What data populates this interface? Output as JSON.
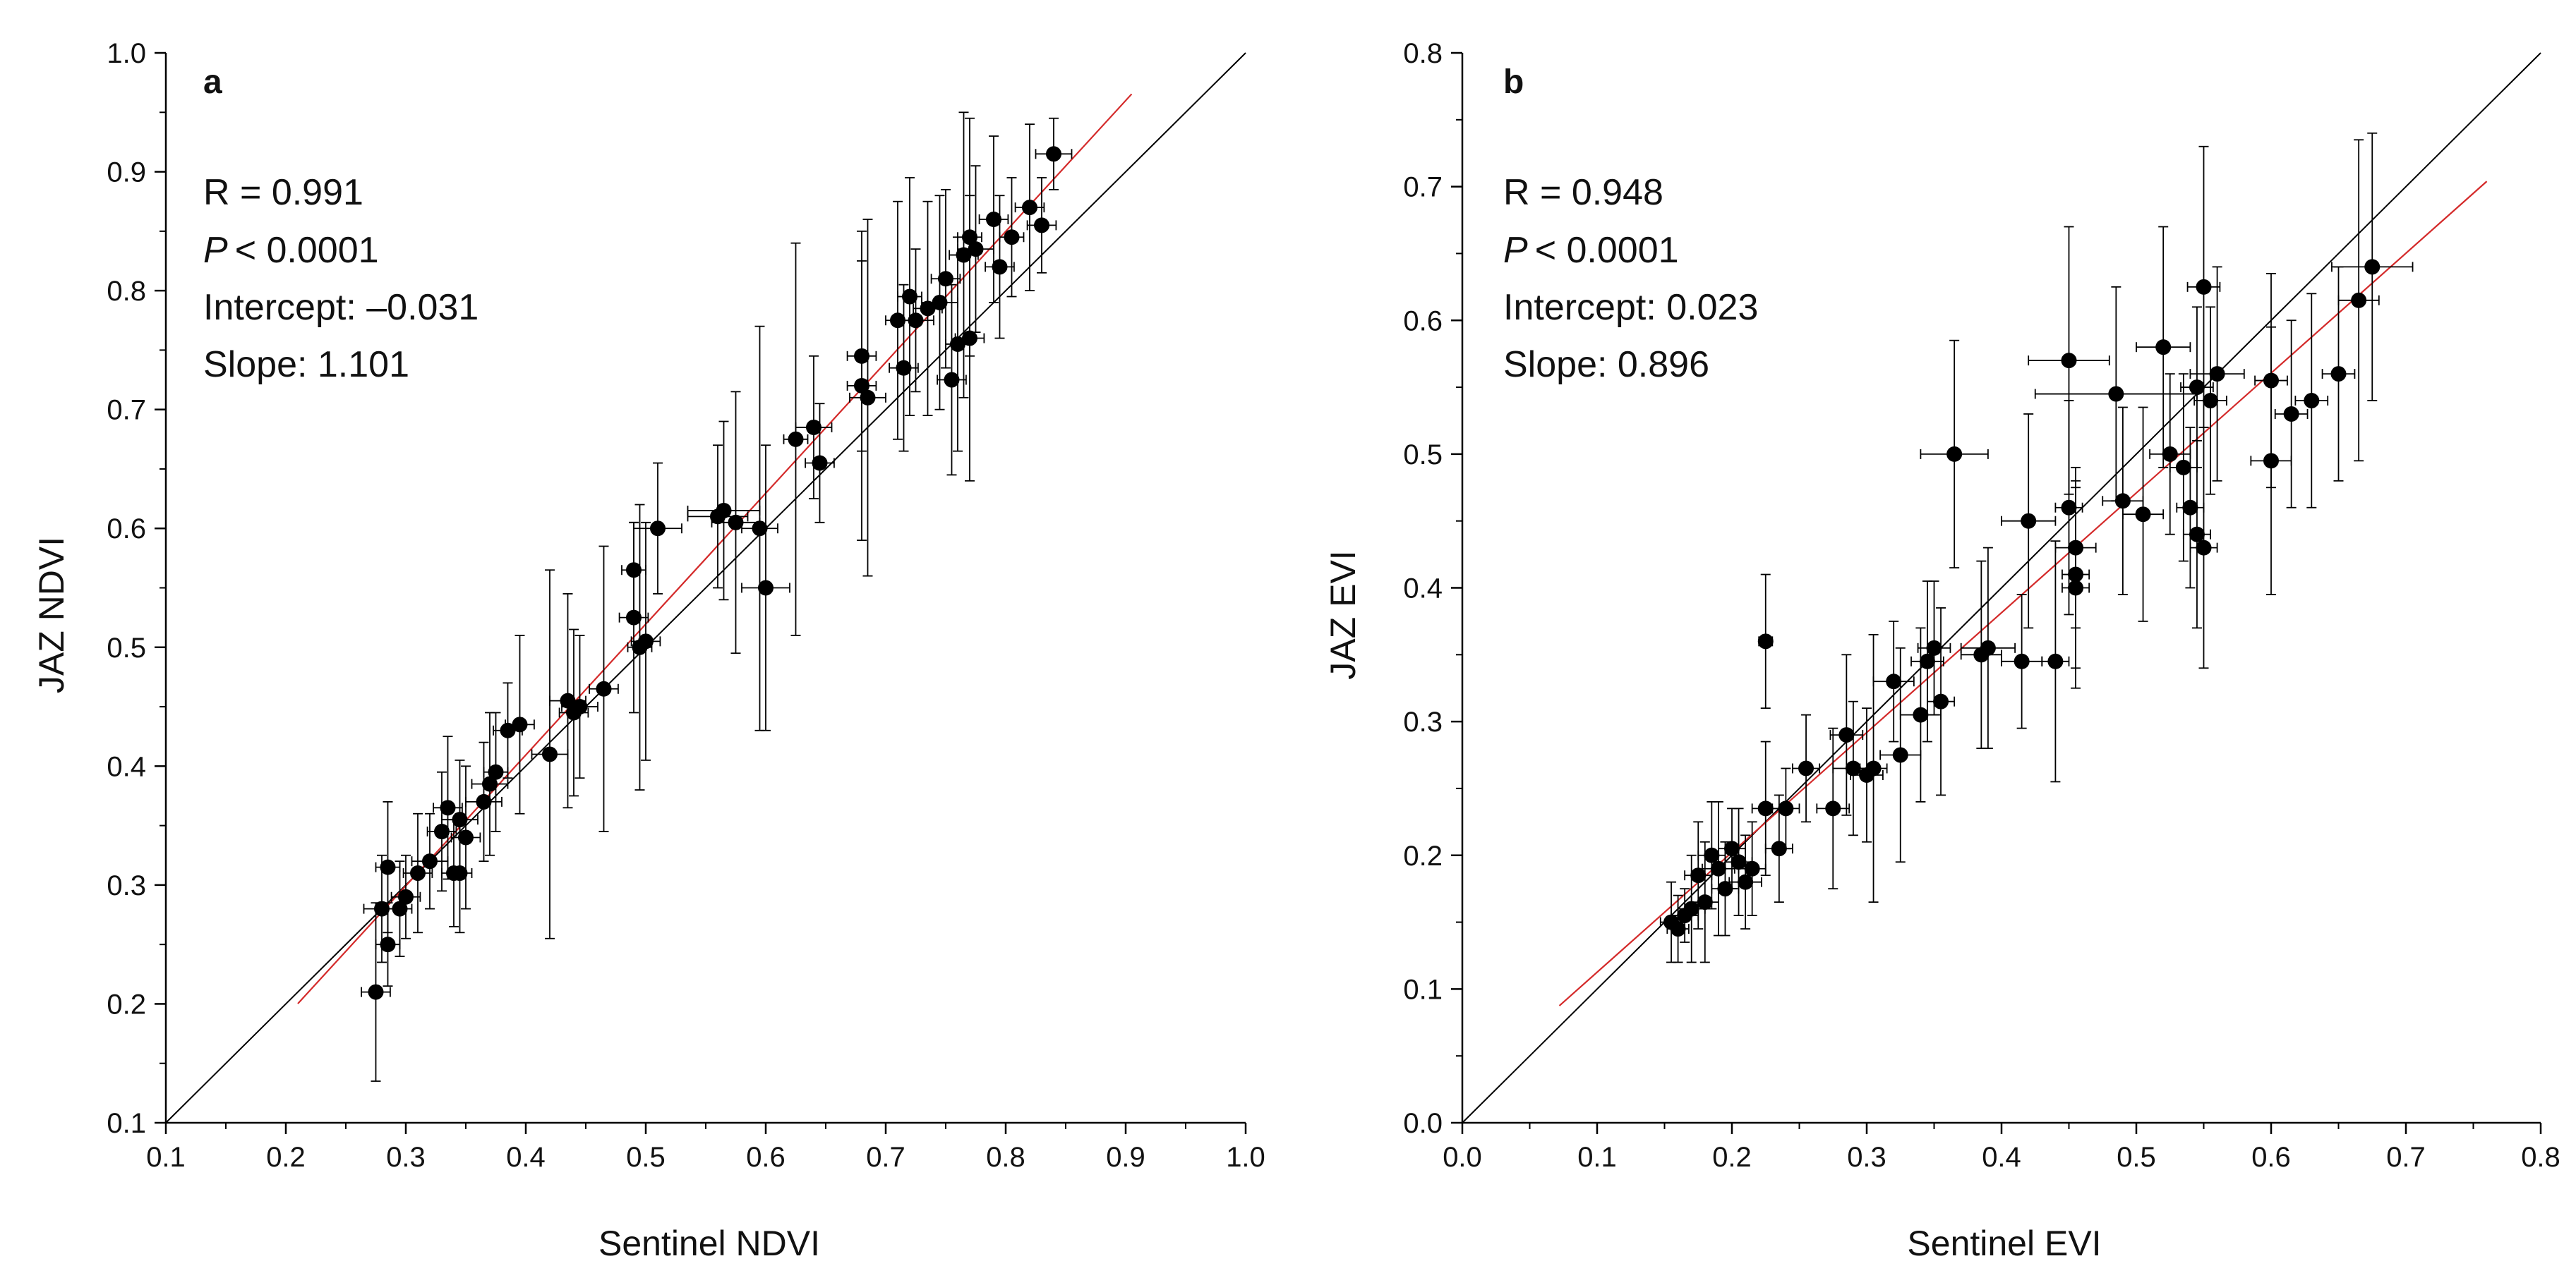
{
  "colors": {
    "axis": "#000000",
    "points": "#000000",
    "fit_line": "#d42a2a",
    "one_to_one": "#000000"
  },
  "chart_data": [
    {
      "type": "scatter",
      "panel": "a",
      "xlabel": "Sentinel NDVI",
      "ylabel": "JAZ NDVI",
      "xlim": [
        0.1,
        1.0
      ],
      "ylim": [
        0.1,
        1.0
      ],
      "xticks": [
        "0.1",
        "0.2",
        "0.3",
        "0.4",
        "0.5",
        "0.6",
        "0.7",
        "0.8",
        "0.9",
        "1.0"
      ],
      "yticks": [
        "0.1",
        "0.2",
        "0.3",
        "0.4",
        "0.5",
        "0.6",
        "0.7",
        "0.8",
        "0.9",
        "1.0"
      ],
      "stats": {
        "r": "R = 0.991",
        "p": "< 0.0001",
        "intercept": "Intercept: –0.031",
        "slope": "Slope: 1.101"
      },
      "p_symbol": "P",
      "one_to_one_line": {
        "x": [
          0.1,
          1.0
        ],
        "y": [
          0.1,
          1.0
        ]
      },
      "fit_line": {
        "x": [
          0.21,
          0.905
        ],
        "intercept": -0.031,
        "slope": 1.101
      },
      "points": [
        {
          "x": 0.275,
          "y": 0.21,
          "xerr": 0.012,
          "yerr": 0.075
        },
        {
          "x": 0.285,
          "y": 0.25,
          "xerr": 0.01,
          "yerr": 0.035
        },
        {
          "x": 0.28,
          "y": 0.28,
          "xerr": 0.015,
          "yerr": 0.045
        },
        {
          "x": 0.285,
          "y": 0.315,
          "xerr": 0.01,
          "yerr": 0.055
        },
        {
          "x": 0.295,
          "y": 0.28,
          "xerr": 0.01,
          "yerr": 0.04
        },
        {
          "x": 0.3,
          "y": 0.29,
          "xerr": 0.012,
          "yerr": 0.035
        },
        {
          "x": 0.31,
          "y": 0.31,
          "xerr": 0.012,
          "yerr": 0.05
        },
        {
          "x": 0.32,
          "y": 0.32,
          "xerr": 0.015,
          "yerr": 0.04
        },
        {
          "x": 0.33,
          "y": 0.345,
          "xerr": 0.012,
          "yerr": 0.05
        },
        {
          "x": 0.335,
          "y": 0.365,
          "xerr": 0.012,
          "yerr": 0.06
        },
        {
          "x": 0.34,
          "y": 0.31,
          "xerr": 0.01,
          "yerr": 0.045
        },
        {
          "x": 0.345,
          "y": 0.355,
          "xerr": 0.015,
          "yerr": 0.05
        },
        {
          "x": 0.35,
          "y": 0.34,
          "xerr": 0.012,
          "yerr": 0.06
        },
        {
          "x": 0.345,
          "y": 0.31,
          "xerr": 0.01,
          "yerr": 0.05
        },
        {
          "x": 0.365,
          "y": 0.37,
          "xerr": 0.015,
          "yerr": 0.05
        },
        {
          "x": 0.37,
          "y": 0.385,
          "xerr": 0.015,
          "yerr": 0.06
        },
        {
          "x": 0.375,
          "y": 0.395,
          "xerr": 0.01,
          "yerr": 0.05
        },
        {
          "x": 0.385,
          "y": 0.43,
          "xerr": 0.012,
          "yerr": 0.04
        },
        {
          "x": 0.395,
          "y": 0.435,
          "xerr": 0.012,
          "yerr": 0.075
        },
        {
          "x": 0.42,
          "y": 0.41,
          "xerr": 0.015,
          "yerr": 0.155
        },
        {
          "x": 0.435,
          "y": 0.455,
          "xerr": 0.015,
          "yerr": 0.09
        },
        {
          "x": 0.44,
          "y": 0.445,
          "xerr": 0.012,
          "yerr": 0.07
        },
        {
          "x": 0.445,
          "y": 0.45,
          "xerr": 0.015,
          "yerr": 0.06
        },
        {
          "x": 0.465,
          "y": 0.465,
          "xerr": 0.012,
          "yerr": 0.12
        },
        {
          "x": 0.49,
          "y": 0.565,
          "xerr": 0.01,
          "yerr": 0.04
        },
        {
          "x": 0.49,
          "y": 0.525,
          "xerr": 0.012,
          "yerr": 0.08
        },
        {
          "x": 0.495,
          "y": 0.5,
          "xerr": 0.01,
          "yerr": 0.12
        },
        {
          "x": 0.5,
          "y": 0.505,
          "xerr": 0.012,
          "yerr": 0.1
        },
        {
          "x": 0.51,
          "y": 0.6,
          "xerr": 0.02,
          "yerr": 0.055
        },
        {
          "x": 0.56,
          "y": 0.61,
          "xerr": 0.025,
          "yerr": 0.06
        },
        {
          "x": 0.565,
          "y": 0.615,
          "xerr": 0.03,
          "yerr": 0.075
        },
        {
          "x": 0.575,
          "y": 0.605,
          "xerr": 0.02,
          "yerr": 0.11
        },
        {
          "x": 0.595,
          "y": 0.6,
          "xerr": 0.015,
          "yerr": 0.17
        },
        {
          "x": 0.6,
          "y": 0.55,
          "xerr": 0.02,
          "yerr": 0.12
        },
        {
          "x": 0.625,
          "y": 0.675,
          "xerr": 0.01,
          "yerr": 0.165
        },
        {
          "x": 0.64,
          "y": 0.685,
          "xerr": 0.015,
          "yerr": 0.06
        },
        {
          "x": 0.645,
          "y": 0.655,
          "xerr": 0.012,
          "yerr": 0.05
        },
        {
          "x": 0.68,
          "y": 0.745,
          "xerr": 0.012,
          "yerr": 0.08
        },
        {
          "x": 0.68,
          "y": 0.72,
          "xerr": 0.012,
          "yerr": 0.13
        },
        {
          "x": 0.685,
          "y": 0.71,
          "xerr": 0.015,
          "yerr": 0.15
        },
        {
          "x": 0.71,
          "y": 0.775,
          "xerr": 0.01,
          "yerr": 0.1
        },
        {
          "x": 0.715,
          "y": 0.735,
          "xerr": 0.012,
          "yerr": 0.07
        },
        {
          "x": 0.72,
          "y": 0.795,
          "xerr": 0.01,
          "yerr": 0.1
        },
        {
          "x": 0.725,
          "y": 0.775,
          "xerr": 0.015,
          "yerr": 0.06
        },
        {
          "x": 0.735,
          "y": 0.785,
          "xerr": 0.012,
          "yerr": 0.09
        },
        {
          "x": 0.745,
          "y": 0.79,
          "xerr": 0.015,
          "yerr": 0.09
        },
        {
          "x": 0.75,
          "y": 0.81,
          "xerr": 0.012,
          "yerr": 0.075
        },
        {
          "x": 0.755,
          "y": 0.725,
          "xerr": 0.012,
          "yerr": 0.08
        },
        {
          "x": 0.76,
          "y": 0.755,
          "xerr": 0.01,
          "yerr": 0.09
        },
        {
          "x": 0.765,
          "y": 0.83,
          "xerr": 0.012,
          "yerr": 0.12
        },
        {
          "x": 0.77,
          "y": 0.845,
          "xerr": 0.01,
          "yerr": 0.1
        },
        {
          "x": 0.77,
          "y": 0.76,
          "xerr": 0.012,
          "yerr": 0.12
        },
        {
          "x": 0.775,
          "y": 0.835,
          "xerr": 0.015,
          "yerr": 0.07
        },
        {
          "x": 0.79,
          "y": 0.86,
          "xerr": 0.012,
          "yerr": 0.07
        },
        {
          "x": 0.795,
          "y": 0.82,
          "xerr": 0.012,
          "yerr": 0.06
        },
        {
          "x": 0.805,
          "y": 0.845,
          "xerr": 0.01,
          "yerr": 0.05
        },
        {
          "x": 0.82,
          "y": 0.87,
          "xerr": 0.012,
          "yerr": 0.07
        },
        {
          "x": 0.83,
          "y": 0.855,
          "xerr": 0.012,
          "yerr": 0.04
        },
        {
          "x": 0.84,
          "y": 0.915,
          "xerr": 0.015,
          "yerr": 0.03
        }
      ]
    },
    {
      "type": "scatter",
      "panel": "b",
      "xlabel": "Sentinel EVI",
      "ylabel": "JAZ EVI",
      "xlim": [
        0.0,
        0.8
      ],
      "ylim": [
        0.0,
        0.8
      ],
      "xticks": [
        "0.0",
        "0.1",
        "0.2",
        "0.3",
        "0.4",
        "0.5",
        "0.6",
        "0.7",
        "0.8"
      ],
      "yticks": [
        "0.0",
        "0.1",
        "0.2",
        "0.3",
        "0.4",
        "0.5",
        "0.6",
        "0.7",
        "0.8"
      ],
      "stats": {
        "r": "R = 0.948",
        "p": "< 0.0001",
        "intercept": "Intercept: 0.023",
        "slope": "Slope: 0.896"
      },
      "p_symbol": "P",
      "one_to_one_line": {
        "x": [
          0.0,
          0.8
        ],
        "y": [
          0.0,
          0.8
        ]
      },
      "fit_line": {
        "x": [
          0.072,
          0.76
        ],
        "intercept": 0.023,
        "slope": 0.896
      },
      "points": [
        {
          "x": 0.155,
          "y": 0.15,
          "xerr": 0.008,
          "yerr": 0.03
        },
        {
          "x": 0.16,
          "y": 0.145,
          "xerr": 0.008,
          "yerr": 0.025
        },
        {
          "x": 0.165,
          "y": 0.155,
          "xerr": 0.01,
          "yerr": 0.02
        },
        {
          "x": 0.17,
          "y": 0.16,
          "xerr": 0.01,
          "yerr": 0.04
        },
        {
          "x": 0.175,
          "y": 0.185,
          "xerr": 0.01,
          "yerr": 0.04
        },
        {
          "x": 0.18,
          "y": 0.165,
          "xerr": 0.01,
          "yerr": 0.045
        },
        {
          "x": 0.185,
          "y": 0.2,
          "xerr": 0.01,
          "yerr": 0.04
        },
        {
          "x": 0.19,
          "y": 0.19,
          "xerr": 0.012,
          "yerr": 0.05
        },
        {
          "x": 0.195,
          "y": 0.175,
          "xerr": 0.01,
          "yerr": 0.035
        },
        {
          "x": 0.2,
          "y": 0.205,
          "xerr": 0.01,
          "yerr": 0.03
        },
        {
          "x": 0.205,
          "y": 0.195,
          "xerr": 0.01,
          "yerr": 0.04
        },
        {
          "x": 0.21,
          "y": 0.18,
          "xerr": 0.012,
          "yerr": 0.035
        },
        {
          "x": 0.215,
          "y": 0.19,
          "xerr": 0.01,
          "yerr": 0.035
        },
        {
          "x": 0.225,
          "y": 0.36,
          "xerr": 0.005,
          "yerr": 0.05
        },
        {
          "x": 0.225,
          "y": 0.235,
          "xerr": 0.01,
          "yerr": 0.05
        },
        {
          "x": 0.235,
          "y": 0.205,
          "xerr": 0.01,
          "yerr": 0.04
        },
        {
          "x": 0.24,
          "y": 0.235,
          "xerr": 0.01,
          "yerr": 0.03
        },
        {
          "x": 0.255,
          "y": 0.265,
          "xerr": 0.01,
          "yerr": 0.04
        },
        {
          "x": 0.275,
          "y": 0.235,
          "xerr": 0.012,
          "yerr": 0.06
        },
        {
          "x": 0.285,
          "y": 0.29,
          "xerr": 0.012,
          "yerr": 0.06
        },
        {
          "x": 0.29,
          "y": 0.265,
          "xerr": 0.015,
          "yerr": 0.05
        },
        {
          "x": 0.3,
          "y": 0.26,
          "xerr": 0.012,
          "yerr": 0.05
        },
        {
          "x": 0.305,
          "y": 0.265,
          "xerr": 0.01,
          "yerr": 0.1
        },
        {
          "x": 0.32,
          "y": 0.33,
          "xerr": 0.015,
          "yerr": 0.045
        },
        {
          "x": 0.325,
          "y": 0.275,
          "xerr": 0.015,
          "yerr": 0.08
        },
        {
          "x": 0.34,
          "y": 0.305,
          "xerr": 0.015,
          "yerr": 0.065
        },
        {
          "x": 0.345,
          "y": 0.345,
          "xerr": 0.012,
          "yerr": 0.06
        },
        {
          "x": 0.35,
          "y": 0.355,
          "xerr": 0.012,
          "yerr": 0.05
        },
        {
          "x": 0.355,
          "y": 0.315,
          "xerr": 0.01,
          "yerr": 0.07
        },
        {
          "x": 0.365,
          "y": 0.5,
          "xerr": 0.025,
          "yerr": 0.085
        },
        {
          "x": 0.385,
          "y": 0.35,
          "xerr": 0.015,
          "yerr": 0.07
        },
        {
          "x": 0.39,
          "y": 0.355,
          "xerr": 0.02,
          "yerr": 0.075
        },
        {
          "x": 0.415,
          "y": 0.345,
          "xerr": 0.015,
          "yerr": 0.05
        },
        {
          "x": 0.42,
          "y": 0.45,
          "xerr": 0.02,
          "yerr": 0.08
        },
        {
          "x": 0.44,
          "y": 0.345,
          "xerr": 0.01,
          "yerr": 0.09
        },
        {
          "x": 0.45,
          "y": 0.57,
          "xerr": 0.03,
          "yerr": 0.1
        },
        {
          "x": 0.45,
          "y": 0.46,
          "xerr": 0.01,
          "yerr": 0.08
        },
        {
          "x": 0.455,
          "y": 0.41,
          "xerr": 0.01,
          "yerr": 0.07
        },
        {
          "x": 0.455,
          "y": 0.4,
          "xerr": 0.01,
          "yerr": 0.075
        },
        {
          "x": 0.455,
          "y": 0.43,
          "xerr": 0.015,
          "yerr": 0.06
        },
        {
          "x": 0.485,
          "y": 0.545,
          "xerr": 0.06,
          "yerr": 0.08
        },
        {
          "x": 0.49,
          "y": 0.465,
          "xerr": 0.015,
          "yerr": 0.07
        },
        {
          "x": 0.505,
          "y": 0.455,
          "xerr": 0.015,
          "yerr": 0.08
        },
        {
          "x": 0.52,
          "y": 0.58,
          "xerr": 0.02,
          "yerr": 0.09
        },
        {
          "x": 0.525,
          "y": 0.5,
          "xerr": 0.015,
          "yerr": 0.06
        },
        {
          "x": 0.535,
          "y": 0.49,
          "xerr": 0.01,
          "yerr": 0.07
        },
        {
          "x": 0.54,
          "y": 0.46,
          "xerr": 0.01,
          "yerr": 0.06
        },
        {
          "x": 0.545,
          "y": 0.55,
          "xerr": 0.012,
          "yerr": 0.06
        },
        {
          "x": 0.545,
          "y": 0.44,
          "xerr": 0.01,
          "yerr": 0.07
        },
        {
          "x": 0.55,
          "y": 0.625,
          "xerr": 0.012,
          "yerr": 0.105
        },
        {
          "x": 0.55,
          "y": 0.43,
          "xerr": 0.01,
          "yerr": 0.09
        },
        {
          "x": 0.555,
          "y": 0.54,
          "xerr": 0.012,
          "yerr": 0.07
        },
        {
          "x": 0.56,
          "y": 0.56,
          "xerr": 0.02,
          "yerr": 0.08
        },
        {
          "x": 0.6,
          "y": 0.495,
          "xerr": 0.015,
          "yerr": 0.1
        },
        {
          "x": 0.6,
          "y": 0.555,
          "xerr": 0.012,
          "yerr": 0.08
        },
        {
          "x": 0.615,
          "y": 0.53,
          "xerr": 0.012,
          "yerr": 0.07
        },
        {
          "x": 0.63,
          "y": 0.54,
          "xerr": 0.012,
          "yerr": 0.08
        },
        {
          "x": 0.65,
          "y": 0.56,
          "xerr": 0.012,
          "yerr": 0.08
        },
        {
          "x": 0.665,
          "y": 0.615,
          "xerr": 0.015,
          "yerr": 0.12
        },
        {
          "x": 0.675,
          "y": 0.64,
          "xerr": 0.03,
          "yerr": 0.1
        }
      ]
    }
  ]
}
